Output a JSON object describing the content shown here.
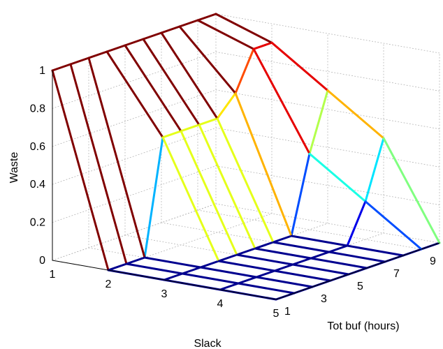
{
  "chart_data": {
    "type": "surface-mesh",
    "title": "",
    "xlabel": "Slack",
    "ylabel": "Tot buf (hours)",
    "zlabel": "Waste",
    "slack_values": [
      1,
      2,
      3,
      4,
      5
    ],
    "totbuf_values": [
      1,
      2,
      3,
      4,
      5,
      6,
      7,
      8,
      9,
      10
    ],
    "x_ticks": [
      "1",
      "2",
      "3",
      "4",
      "5"
    ],
    "y_ticks": [
      "1",
      "3",
      "5",
      "7",
      "9"
    ],
    "z_ticks": [
      "0",
      "0.2",
      "0.4",
      "0.6",
      "0.8",
      "1"
    ],
    "zlim": [
      0,
      1
    ],
    "grid": true,
    "colormap": "jet",
    "z": [
      [
        1.0,
        1.0,
        1.0,
        1.0,
        1.0,
        1.0,
        1.0,
        1.0,
        1.0,
        1.0
      ],
      [
        0.0,
        0.0,
        0.0,
        0.6,
        0.6,
        0.6,
        0.6,
        0.7,
        0.9,
        0.9
      ],
      [
        0.0,
        0.0,
        0.0,
        0.0,
        0.0,
        0.0,
        0.0,
        0.0,
        0.4,
        0.7
      ],
      [
        0.0,
        0.0,
        0.0,
        0.0,
        0.0,
        0.0,
        0.0,
        0.0,
        0.2,
        0.5
      ],
      [
        0.0,
        0.0,
        0.0,
        0.0,
        0.0,
        0.0,
        0.0,
        0.0,
        0.0,
        0.0
      ]
    ]
  }
}
